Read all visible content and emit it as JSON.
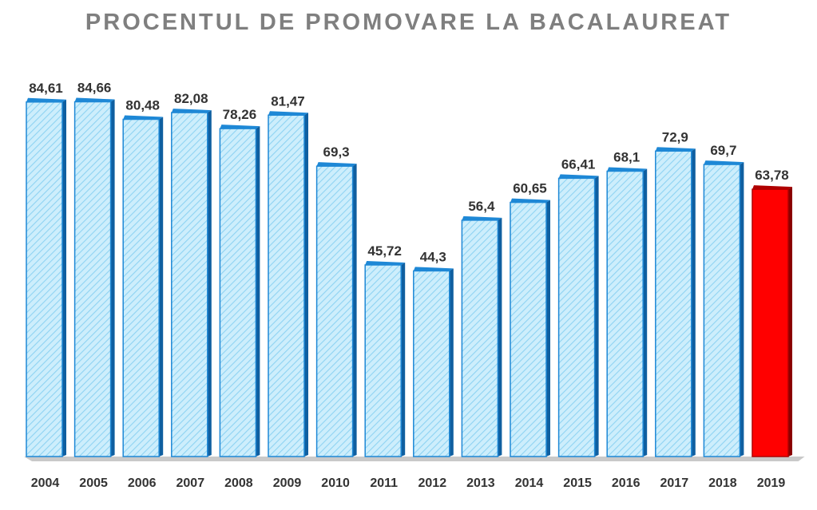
{
  "chart_data": {
    "type": "bar",
    "title": "PROCENTUL DE PROMOVARE LA BACALAUREAT",
    "xlabel": "",
    "ylabel": "",
    "categories": [
      "2004",
      "2005",
      "2006",
      "2007",
      "2008",
      "2009",
      "2010",
      "2011",
      "2012",
      "2013",
      "2014",
      "2015",
      "2016",
      "2017",
      "2018",
      "2019"
    ],
    "values": [
      84.61,
      84.66,
      80.48,
      82.08,
      78.26,
      81.47,
      69.3,
      45.72,
      44.3,
      56.4,
      60.65,
      66.41,
      68.1,
      72.9,
      69.7,
      63.78
    ],
    "value_labels": [
      "84,61",
      "84,66",
      "80,48",
      "82,08",
      "78,26",
      "81,47",
      "69,3",
      "45,72",
      "44,3",
      "56,4",
      "60,65",
      "66,41",
      "68,1",
      "72,9",
      "69,7",
      "63,78"
    ],
    "ylim": [
      0,
      100
    ],
    "grid": false,
    "legend": "none",
    "colors": {
      "bar_fill": "#cdeefc",
      "bar_hatch": "#8fd3f2",
      "bar_edge": "#1e88d6",
      "bar_side": "#0f5fa0",
      "highlight_fill": "#ff0000",
      "highlight_edge": "#b00000",
      "highlight_side": "#8a0000",
      "highlight_index": 15,
      "floor": "#c9c9c9",
      "title": "#7f7f7f",
      "labels": "#333333"
    }
  }
}
